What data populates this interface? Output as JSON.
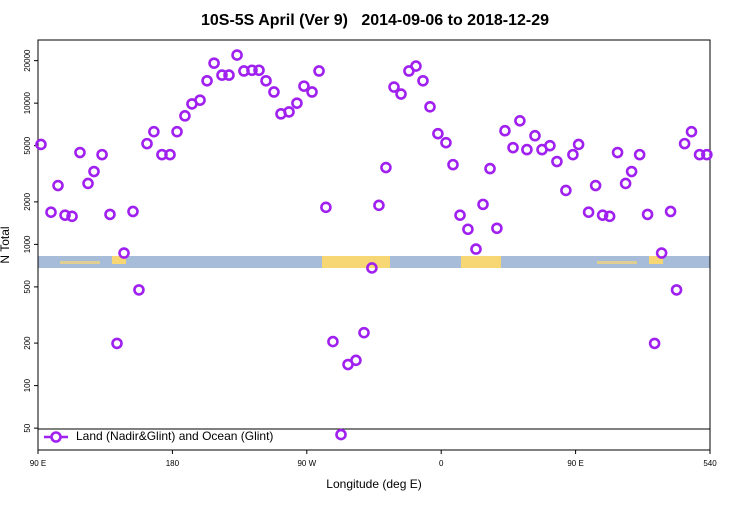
{
  "chart_data": {
    "type": "scatter",
    "title": "10S-5S April (Ver 9)   2014-09-06 to 2018-12-29",
    "x_label": "Longitude (deg E)",
    "y_label": "N Total",
    "ylog": true,
    "xlim": [
      90,
      540
    ],
    "ylim": [
      35,
      28000
    ],
    "xticks": [
      {
        "value": 90,
        "label": "90 E"
      },
      180,
      {
        "value": 270,
        "label": "90 W"
      },
      {
        "value": 360,
        "label": "0"
      },
      {
        "value": 450,
        "label": "90 E"
      },
      540
    ],
    "yticks": [
      50,
      100,
      200,
      500,
      1000,
      2000,
      5000,
      10000,
      20000
    ],
    "legend": "lower left",
    "series": [
      {
        "name": "Land (Nadir&Glint) and Ocean (Glint)",
        "color": "#a020f0",
        "x": [
          92.0,
          98.7,
          103.4,
          108.1,
          112.8,
          118.1,
          123.5,
          127.5,
          132.9,
          138.2,
          142.9,
          147.6,
          153.6,
          157.6,
          163.0,
          167.6,
          173.0,
          178.4,
          183.1,
          188.4,
          193.1,
          198.5,
          203.2,
          207.9,
          213.2,
          217.9,
          223.3,
          227.9,
          233.3,
          238.0,
          242.7,
          248.0,
          252.7,
          258.1,
          263.4,
          268.1,
          273.5,
          278.2,
          282.8,
          287.5,
          292.9,
          297.6,
          302.9,
          308.3,
          313.6,
          318.3,
          323.0,
          328.4,
          333.1,
          338.4,
          343.1,
          347.8,
          352.5,
          357.8,
          363.2,
          367.9,
          372.6,
          377.9,
          383.3,
          388.0,
          392.7,
          397.3,
          402.7,
          408.1,
          412.7,
          417.4,
          422.8,
          427.5,
          432.8,
          437.5,
          443.5,
          448.2,
          452.0,
          458.7,
          463.4,
          468.1,
          472.8,
          478.1,
          483.5,
          487.5,
          492.9,
          498.2,
          502.9,
          507.6,
          513.6,
          517.6,
          523.0,
          527.6,
          533.0,
          537.9
        ],
        "values": [
          5100,
          1690,
          2610,
          1610,
          1580,
          4470,
          2700,
          3280,
          4320,
          1630,
          199,
          868,
          1710,
          476,
          5170,
          6280,
          4320,
          4320,
          6280,
          8130,
          9880,
          10500,
          14400,
          19200,
          15800,
          15800,
          21900,
          16900,
          17100,
          17100,
          14400,
          12000,
          8400,
          8670,
          10000,
          13200,
          12000,
          16900,
          1830,
          205,
          45,
          141,
          151,
          237,
          681,
          1890,
          3500,
          13000,
          11600,
          16900,
          18300,
          14400,
          9420,
          6080,
          5250,
          3670,
          1610,
          1280,
          926,
          1920,
          3440,
          1300,
          6380,
          4840,
          7500,
          4690,
          5880,
          4690,
          5000,
          3860,
          2410,
          4320,
          5100,
          1690,
          2610,
          1610,
          1580,
          4470,
          2700,
          3280,
          4320,
          1630,
          199,
          868,
          1710,
          476,
          5170,
          6280,
          4320,
          4320
        ]
      }
    ]
  }
}
